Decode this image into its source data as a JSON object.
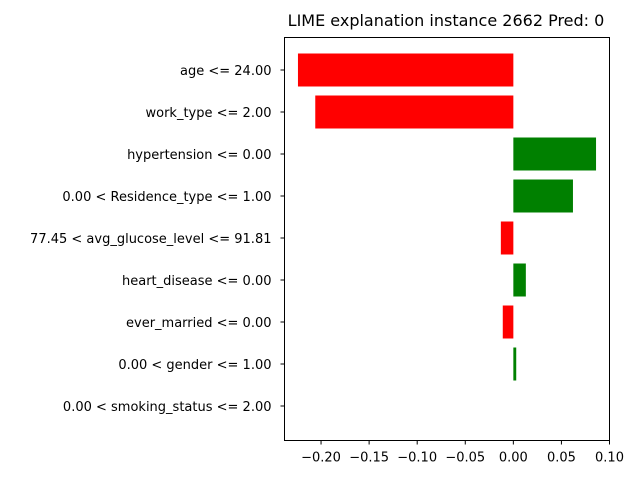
{
  "chart_data": {
    "type": "bar",
    "orientation": "horizontal",
    "title": "LIME explanation instance 2662 Pred: 0",
    "xlabel": "",
    "ylabel": "",
    "categories": [
      "age <= 24.00",
      "work_type <= 2.00",
      "hypertension <= 0.00",
      "0.00 < Residence_type <= 1.00",
      "77.45 < avg_glucose_level <= 91.81",
      "heart_disease <= 0.00",
      "ever_married <= 0.00",
      "0.00 < gender <= 1.00",
      "0.00 < smoking_status <= 2.00"
    ],
    "values": [
      -0.224,
      -0.206,
      0.086,
      0.062,
      -0.013,
      0.013,
      -0.011,
      0.003,
      0.0
    ],
    "xlim": [
      -0.238,
      0.1
    ],
    "xticks": [
      "−0.20",
      "−0.15",
      "−0.10",
      "−0.05",
      "0.00",
      "0.05",
      "0.10"
    ],
    "xtick_values": [
      -0.2,
      -0.15,
      -0.1,
      -0.05,
      0.0,
      0.05,
      0.1
    ],
    "grid": false,
    "legend": "none",
    "colors": {
      "positive": "#008000",
      "negative": "#ff0000"
    }
  }
}
